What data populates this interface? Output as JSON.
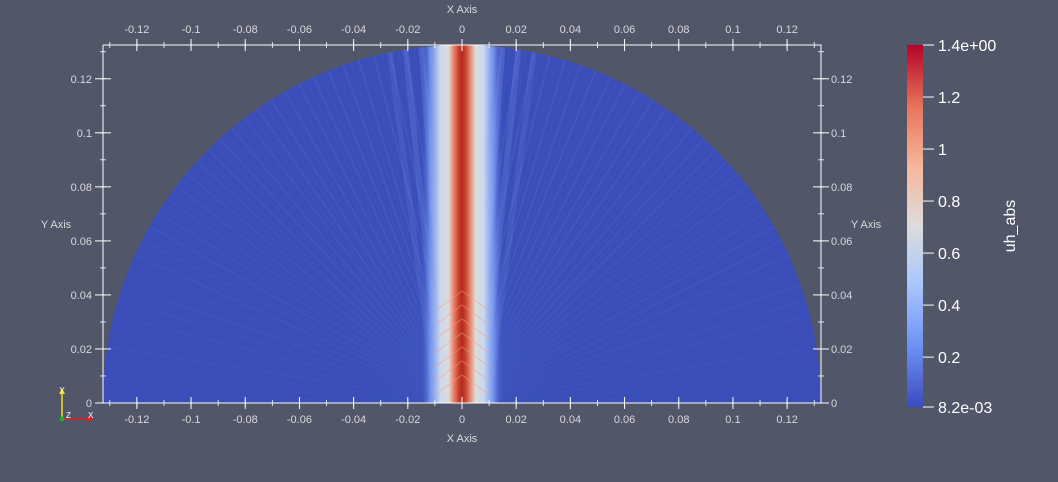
{
  "window": {
    "background": "#525669"
  },
  "axes": {
    "x_title": "X Axis",
    "y_title": "Y Axis",
    "x_ticks": [
      "-0.12",
      "-0.1",
      "-0.08",
      "-0.06",
      "-0.04",
      "-0.02",
      "0",
      "0.02",
      "0.04",
      "0.06",
      "0.08",
      "0.1",
      "0.12"
    ],
    "y_ticks": [
      "0",
      "0.02",
      "0.04",
      "0.06",
      "0.08",
      "0.1",
      "0.12"
    ],
    "x_tick_values": [
      -0.12,
      -0.1,
      -0.08,
      -0.06,
      -0.04,
      -0.02,
      0,
      0.02,
      0.04,
      0.06,
      0.08,
      0.1,
      0.12
    ],
    "y_tick_values": [
      0,
      0.02,
      0.04,
      0.06,
      0.08,
      0.1,
      0.12
    ],
    "x_range": [
      -0.1325,
      0.1325
    ],
    "y_range": [
      0,
      0.1325
    ]
  },
  "field": {
    "name": "uh_abs",
    "domain_shape": "half-disk",
    "radius": 0.1325,
    "beam_half_width": 0.01
  },
  "colorbar": {
    "title": "uh_abs",
    "labels": [
      "1.4e+00",
      "1.2",
      "1",
      "0.8",
      "0.6",
      "0.4",
      "0.2",
      "8.2e-03"
    ],
    "label_values": [
      1.4,
      1.2,
      1.0,
      0.8,
      0.6,
      0.4,
      0.2,
      0.0082
    ],
    "range": [
      0.0082,
      1.4
    ],
    "colors": [
      "#3b4cc0",
      "#6f92f3",
      "#aac7fd",
      "#dddcdc",
      "#f7b89c",
      "#e7745b",
      "#b40426"
    ]
  },
  "orientation_axes": {
    "x": "X",
    "y": "Y",
    "z": "Z"
  },
  "colors": {
    "axis_line": "#ffffff",
    "tick_text": "#d8d8dc",
    "low": "#3b4cc0",
    "high": "#b40426"
  }
}
